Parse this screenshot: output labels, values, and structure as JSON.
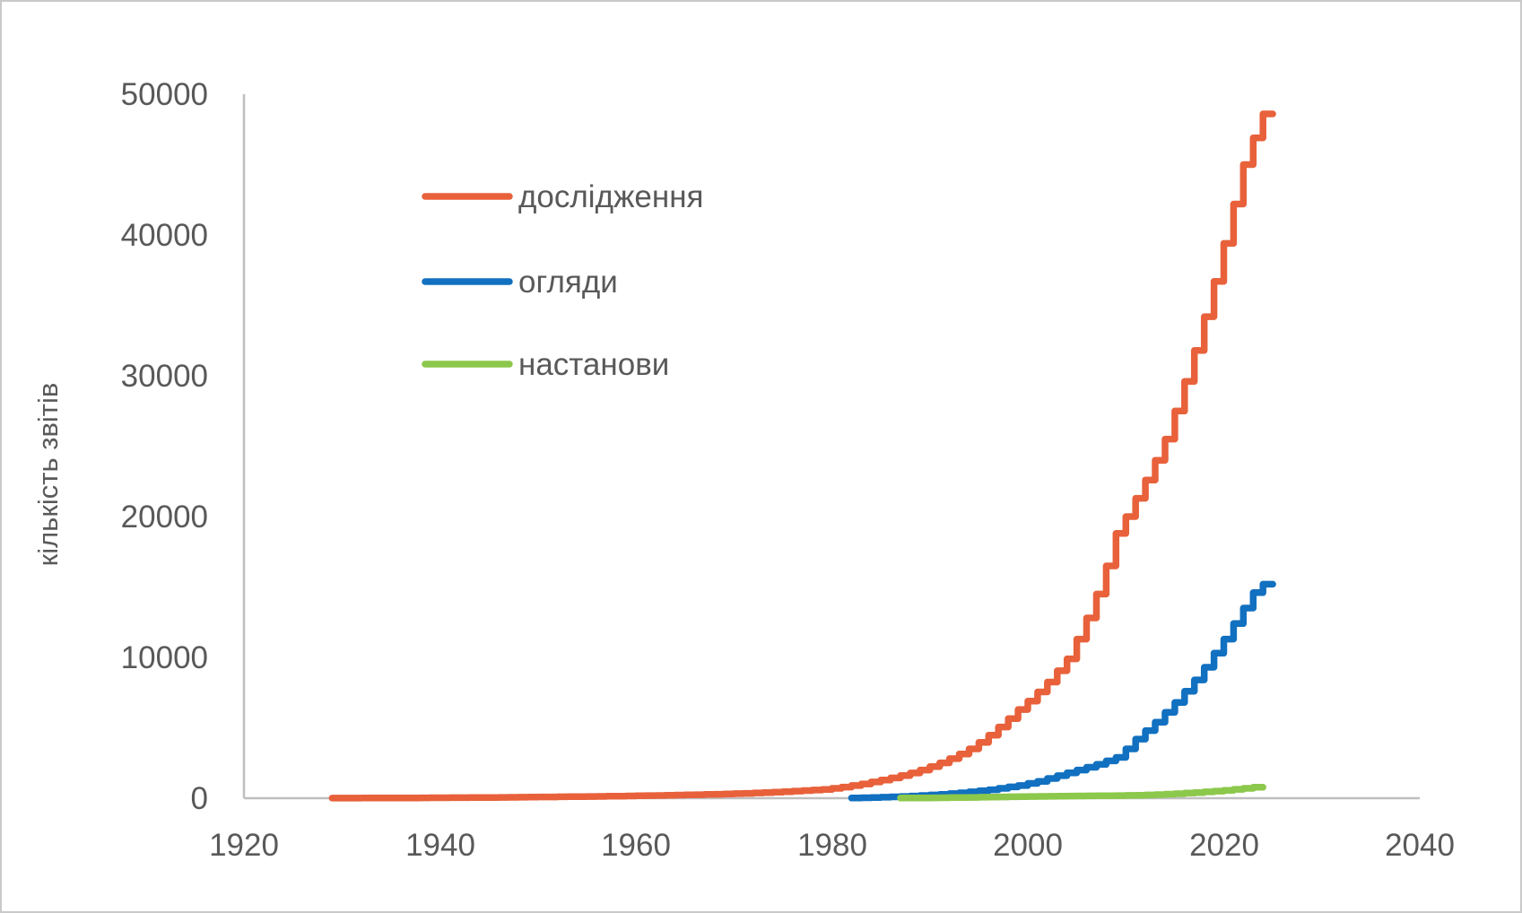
{
  "figure": {
    "background": "#ffffff",
    "border_color": "#c9c9c9",
    "text_color": "#595959",
    "axis_line_color": "#bfbfbf"
  },
  "y_axis": {
    "title": "кількість звітів",
    "ticks": [
      0,
      10000,
      20000,
      30000,
      40000,
      50000
    ]
  },
  "x_axis": {
    "ticks": [
      1920,
      1940,
      1960,
      1980,
      2000,
      2020,
      2040
    ]
  },
  "legend": [
    {
      "label": "дослідження",
      "color": "#e8613b"
    },
    {
      "label": "огляди",
      "color": "#1170c0"
    },
    {
      "label": "настанови",
      "color": "#8cc84b"
    }
  ],
  "chart_data": {
    "type": "line",
    "step": true,
    "title": "",
    "xlabel": "",
    "ylabel": "кількість звітів",
    "xlim": [
      1920,
      2040
    ],
    "ylim": [
      0,
      50000
    ],
    "grid": false,
    "legend_position": "upper-left-inside",
    "series": [
      {
        "name": "дослідження",
        "color": "#e8613b",
        "start_year": 1929,
        "end_year": 2025,
        "values": [
          5,
          6,
          7,
          8,
          10,
          11,
          13,
          16,
          19,
          22,
          26,
          30,
          33,
          36,
          40,
          44,
          49,
          54,
          60,
          66,
          73,
          80,
          86,
          92,
          99,
          106,
          113,
          121,
          130,
          139,
          149,
          160,
          171,
          182,
          194,
          207,
          221,
          235,
          250,
          266,
          283,
          300,
          322,
          347,
          373,
          400,
          430,
          465,
          500,
          540,
          580,
          620,
          700,
          790,
          895,
          1015,
          1150,
          1290,
          1440,
          1610,
          1790,
          2000,
          2240,
          2510,
          2810,
          3140,
          3500,
          3960,
          4480,
          5060,
          5650,
          6300,
          6900,
          7550,
          8250,
          9050,
          9900,
          11300,
          12800,
          14500,
          16500,
          18800,
          20000,
          21300,
          22600,
          24000,
          25500,
          27500,
          29600,
          31800,
          34200,
          36700,
          39400,
          42200,
          45000,
          46900,
          48600
        ]
      },
      {
        "name": "огляди",
        "color": "#1170c0",
        "start_year": 1982,
        "end_year": 2025,
        "values": [
          10,
          20,
          35,
          50,
          70,
          95,
          120,
          155,
          190,
          230,
          275,
          325,
          385,
          450,
          520,
          600,
          700,
          800,
          900,
          1050,
          1200,
          1400,
          1600,
          1800,
          2000,
          2200,
          2400,
          2650,
          2900,
          3500,
          4200,
          4800,
          5400,
          6100,
          6800,
          7600,
          8400,
          9300,
          10300,
          11300,
          12400,
          13500,
          14600,
          15200
        ]
      },
      {
        "name": "настанови",
        "color": "#8cc84b",
        "start_year": 1987,
        "end_year": 2024,
        "values": [
          5,
          10,
          15,
          20,
          27,
          35,
          43,
          51,
          60,
          70,
          80,
          90,
          100,
          110,
          118,
          126,
          134,
          142,
          150,
          157,
          164,
          171,
          178,
          185,
          195,
          210,
          230,
          255,
          285,
          320,
          360,
          400,
          450,
          500,
          560,
          630,
          700,
          780
        ]
      }
    ]
  }
}
